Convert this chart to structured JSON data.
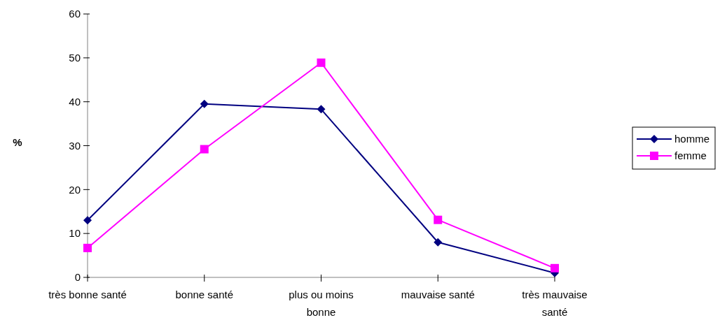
{
  "chart_data": {
    "type": "line",
    "ylabel": "%",
    "categories": [
      "très bonne santé",
      "bonne santé",
      "plus ou moins bonne",
      "mauvaise santé",
      "très mauvaise santé"
    ],
    "series": [
      {
        "name": "homme",
        "color": "#000080",
        "marker": "diamond",
        "values": [
          13,
          39.5,
          38.3,
          8,
          1
        ]
      },
      {
        "name": "femme",
        "color": "#ff00ff",
        "marker": "square",
        "values": [
          6.7,
          29.2,
          48.9,
          13.1,
          2.1
        ]
      }
    ],
    "ylim": [
      0,
      60
    ],
    "yticks": [
      0,
      10,
      20,
      30,
      40,
      50,
      60
    ],
    "grid": false,
    "legend": "right"
  }
}
